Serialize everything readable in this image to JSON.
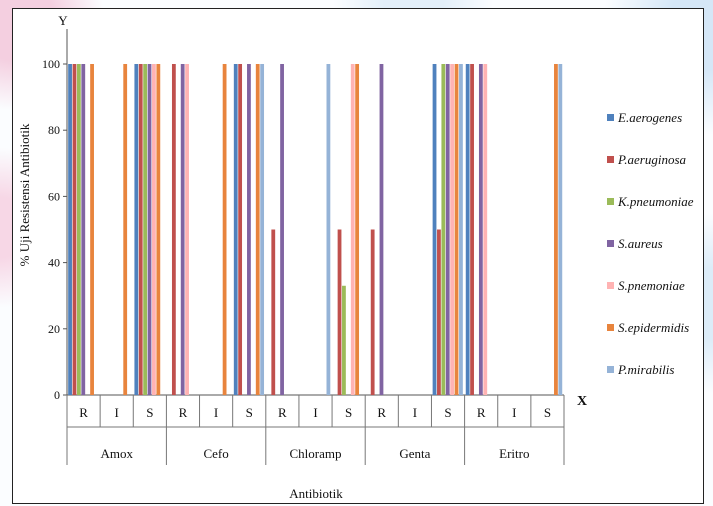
{
  "chart_data": {
    "type": "bar",
    "y_axis_letter": "Y",
    "x_axis_letter": "X",
    "ylabel": "% Uji Resistensi Antibiotik",
    "xlabel": "Antibiotik",
    "ylim": [
      0,
      100
    ],
    "yticks": [
      "0",
      "20",
      "40",
      "60",
      "80",
      "100"
    ],
    "groups": [
      "Amox",
      "Cefo",
      "Chloramp",
      "Genta",
      "Eritro"
    ],
    "subcategories": [
      "R",
      "I",
      "S"
    ],
    "legend_position": "right",
    "grid": false,
    "series": [
      {
        "name": "E.aerogenes",
        "color": "#4f81bd",
        "values": [
          100,
          0,
          100,
          0,
          0,
          100,
          0,
          0,
          0,
          0,
          0,
          100,
          100,
          0,
          0
        ]
      },
      {
        "name": "P.aeruginosa",
        "color": "#c0504d",
        "values": [
          100,
          0,
          100,
          100,
          0,
          100,
          50,
          0,
          50,
          50,
          0,
          50,
          100,
          0,
          0
        ]
      },
      {
        "name": "K.pneumoniae",
        "color": "#9bbb59",
        "values": [
          100,
          0,
          100,
          0,
          0,
          0,
          0,
          0,
          33,
          0,
          0,
          100,
          0,
          0,
          0
        ]
      },
      {
        "name": "S.aureus",
        "color": "#8064a2",
        "values": [
          100,
          0,
          100,
          100,
          0,
          100,
          100,
          0,
          0,
          100,
          0,
          100,
          100,
          0,
          0
        ]
      },
      {
        "name": "S.pnemoniae",
        "color": "#ffb3b3",
        "values": [
          0,
          0,
          100,
          100,
          0,
          0,
          0,
          0,
          100,
          0,
          0,
          100,
          100,
          0,
          0
        ]
      },
      {
        "name": "S.epidermidis",
        "color": "#e8843d",
        "values": [
          100,
          100,
          100,
          0,
          100,
          100,
          0,
          0,
          100,
          0,
          0,
          100,
          0,
          0,
          100
        ]
      },
      {
        "name": "P.mirabilis",
        "color": "#95b3d7",
        "values": [
          0,
          0,
          0,
          0,
          0,
          100,
          0,
          100,
          0,
          0,
          0,
          100,
          0,
          0,
          100
        ]
      }
    ]
  }
}
